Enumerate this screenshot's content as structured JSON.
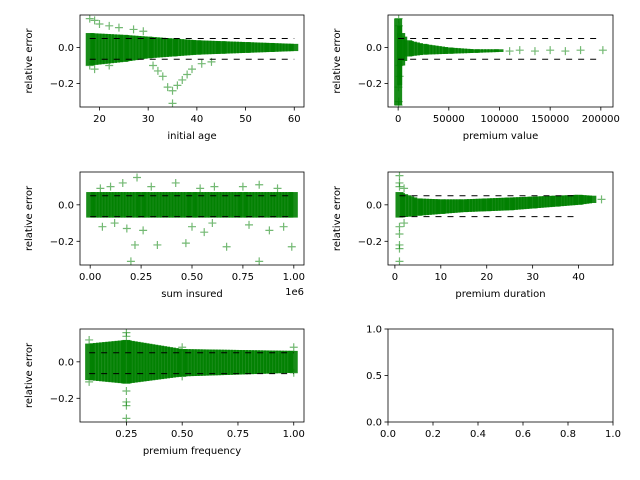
{
  "marker_color": "#008000",
  "bound_color": "#000000",
  "chart_data": [
    {
      "type": "scatter",
      "xlabel": "initial age",
      "ylabel": "relative error",
      "xlim": [
        16,
        62
      ],
      "ylim": [
        -0.33,
        0.18
      ],
      "xticks": [
        20,
        30,
        40,
        50,
        60
      ],
      "xtick_labels": [
        "20",
        "30",
        "40",
        "50",
        "60"
      ],
      "yticks": [
        0.0,
        -0.2
      ],
      "ytick_labels": [
        "0.0",
        "−0.2"
      ],
      "upper_bound": 0.05,
      "lower_bound": -0.065,
      "bound_x": [
        18,
        60
      ],
      "bands": [
        {
          "x": 18,
          "y_min": -0.1,
          "y_max": 0.08
        },
        {
          "x": 25,
          "y_min": -0.08,
          "y_max": 0.07
        },
        {
          "x": 30,
          "y_min": -0.06,
          "y_max": 0.06
        },
        {
          "x": 35,
          "y_min": -0.05,
          "y_max": 0.05
        },
        {
          "x": 40,
          "y_min": -0.04,
          "y_max": 0.04
        },
        {
          "x": 45,
          "y_min": -0.035,
          "y_max": 0.035
        },
        {
          "x": 50,
          "y_min": -0.03,
          "y_max": 0.03
        },
        {
          "x": 55,
          "y_min": -0.025,
          "y_max": 0.025
        },
        {
          "x": 60,
          "y_min": -0.02,
          "y_max": 0.02
        }
      ],
      "outliers": [
        {
          "x": 18,
          "y": 0.16
        },
        {
          "x": 19,
          "y": 0.15
        },
        {
          "x": 20,
          "y": 0.13
        },
        {
          "x": 22,
          "y": 0.12
        },
        {
          "x": 24,
          "y": 0.11
        },
        {
          "x": 27,
          "y": 0.1
        },
        {
          "x": 29,
          "y": 0.09
        },
        {
          "x": 18,
          "y": -0.1
        },
        {
          "x": 19,
          "y": -0.12
        },
        {
          "x": 22,
          "y": -0.1
        },
        {
          "x": 31,
          "y": -0.1
        },
        {
          "x": 32,
          "y": -0.13
        },
        {
          "x": 33,
          "y": -0.16
        },
        {
          "x": 34,
          "y": -0.22
        },
        {
          "x": 35,
          "y": -0.24
        },
        {
          "x": 35,
          "y": -0.31
        },
        {
          "x": 36,
          "y": -0.21
        },
        {
          "x": 37,
          "y": -0.18
        },
        {
          "x": 38,
          "y": -0.15
        },
        {
          "x": 39,
          "y": -0.12
        },
        {
          "x": 41,
          "y": -0.09
        },
        {
          "x": 43,
          "y": -0.08
        }
      ]
    },
    {
      "type": "scatter",
      "xlabel": "premium value",
      "ylabel": "relative error",
      "xlim": [
        -10000,
        212000
      ],
      "ylim": [
        -0.33,
        0.18
      ],
      "xticks": [
        0,
        50000,
        100000,
        150000,
        200000
      ],
      "xtick_labels": [
        "0",
        "50000",
        "100000",
        "150000",
        "200000"
      ],
      "yticks": [
        0.0,
        -0.2
      ],
      "ytick_labels": [
        "0.0",
        "−0.2"
      ],
      "upper_bound": 0.05,
      "lower_bound": -0.065,
      "bound_x": [
        0,
        200000
      ],
      "bands": [
        {
          "x": 0,
          "y_min": -0.32,
          "y_max": 0.16
        },
        {
          "x": 3000,
          "y_min": -0.1,
          "y_max": 0.08
        },
        {
          "x": 10000,
          "y_min": -0.05,
          "y_max": 0.04
        },
        {
          "x": 25000,
          "y_min": -0.04,
          "y_max": 0.02
        },
        {
          "x": 50000,
          "y_min": -0.035,
          "y_max": 0.0
        },
        {
          "x": 75000,
          "y_min": -0.03,
          "y_max": -0.01
        },
        {
          "x": 100000,
          "y_min": -0.025,
          "y_max": -0.01
        }
      ],
      "outliers": [
        {
          "x": 500,
          "y": 0.16
        },
        {
          "x": 800,
          "y": 0.12
        },
        {
          "x": 300,
          "y": -0.22
        },
        {
          "x": 600,
          "y": -0.3
        },
        {
          "x": 400,
          "y": -0.32
        },
        {
          "x": 1500,
          "y": -0.16
        },
        {
          "x": 1200,
          "y": -0.1
        },
        {
          "x": 110000,
          "y": -0.02
        },
        {
          "x": 120000,
          "y": -0.015
        },
        {
          "x": 135000,
          "y": -0.02
        },
        {
          "x": 150000,
          "y": -0.015
        },
        {
          "x": 165000,
          "y": -0.02
        },
        {
          "x": 180000,
          "y": -0.015
        },
        {
          "x": 202000,
          "y": -0.015
        }
      ]
    },
    {
      "type": "scatter",
      "xlabel": "sum insured",
      "ylabel": "relative error",
      "xlim": [
        -50000,
        1050000
      ],
      "ylim": [
        -0.33,
        0.18
      ],
      "xticks": [
        0,
        250000,
        500000,
        750000,
        1000000
      ],
      "xtick_labels": [
        "0.00",
        "0.25",
        "0.50",
        "0.75",
        "1.00"
      ],
      "offset_text": "1e6",
      "yticks": [
        0.0,
        -0.2
      ],
      "ytick_labels": [
        "0.0",
        "−0.2"
      ],
      "upper_bound": 0.05,
      "lower_bound": -0.065,
      "bound_x": [
        0,
        1000000
      ],
      "bands": [
        {
          "x": 0,
          "y_min": -0.07,
          "y_max": 0.07
        },
        {
          "x": 250000,
          "y_min": -0.07,
          "y_max": 0.07
        },
        {
          "x": 500000,
          "y_min": -0.07,
          "y_max": 0.07
        },
        {
          "x": 750000,
          "y_min": -0.07,
          "y_max": 0.07
        },
        {
          "x": 1000000,
          "y_min": -0.07,
          "y_max": 0.07
        }
      ],
      "outliers": [
        {
          "x": 50000,
          "y": 0.09
        },
        {
          "x": 100000,
          "y": 0.1
        },
        {
          "x": 160000,
          "y": 0.12
        },
        {
          "x": 230000,
          "y": 0.15
        },
        {
          "x": 300000,
          "y": 0.1
        },
        {
          "x": 420000,
          "y": 0.12
        },
        {
          "x": 540000,
          "y": 0.09
        },
        {
          "x": 610000,
          "y": 0.1
        },
        {
          "x": 750000,
          "y": 0.1
        },
        {
          "x": 830000,
          "y": 0.11
        },
        {
          "x": 920000,
          "y": 0.09
        },
        {
          "x": 60000,
          "y": -0.12
        },
        {
          "x": 120000,
          "y": -0.1
        },
        {
          "x": 180000,
          "y": -0.13
        },
        {
          "x": 200000,
          "y": -0.31
        },
        {
          "x": 220000,
          "y": -0.22
        },
        {
          "x": 260000,
          "y": -0.14
        },
        {
          "x": 330000,
          "y": -0.22
        },
        {
          "x": 470000,
          "y": -0.21
        },
        {
          "x": 500000,
          "y": -0.12
        },
        {
          "x": 560000,
          "y": -0.15
        },
        {
          "x": 600000,
          "y": -0.1
        },
        {
          "x": 670000,
          "y": -0.23
        },
        {
          "x": 780000,
          "y": -0.11
        },
        {
          "x": 830000,
          "y": -0.31
        },
        {
          "x": 880000,
          "y": -0.14
        },
        {
          "x": 950000,
          "y": -0.12
        },
        {
          "x": 990000,
          "y": -0.23
        }
      ]
    },
    {
      "type": "scatter",
      "xlabel": "premium duration",
      "ylabel": "relative error",
      "xlim": [
        -1.5,
        47.5
      ],
      "ylim": [
        -0.33,
        0.18
      ],
      "xticks": [
        0,
        10,
        20,
        30,
        40
      ],
      "xtick_labels": [
        "0",
        "10",
        "20",
        "30",
        "40"
      ],
      "yticks": [
        0.0,
        -0.2
      ],
      "ytick_labels": [
        "0.0",
        "−0.2"
      ],
      "upper_bound": 0.05,
      "lower_bound": -0.065,
      "bound_x": [
        1,
        40
      ],
      "bands": [
        {
          "x": 1,
          "y_min": -0.07,
          "y_max": 0.07
        },
        {
          "x": 5,
          "y_min": -0.06,
          "y_max": 0.035
        },
        {
          "x": 10,
          "y_min": -0.05,
          "y_max": 0.03
        },
        {
          "x": 15,
          "y_min": -0.04,
          "y_max": 0.03
        },
        {
          "x": 20,
          "y_min": -0.035,
          "y_max": 0.035
        },
        {
          "x": 25,
          "y_min": -0.03,
          "y_max": 0.04
        },
        {
          "x": 30,
          "y_min": -0.02,
          "y_max": 0.045
        },
        {
          "x": 35,
          "y_min": -0.01,
          "y_max": 0.05
        },
        {
          "x": 40,
          "y_min": 0.0,
          "y_max": 0.055
        },
        {
          "x": 43,
          "y_min": 0.01,
          "y_max": 0.05
        }
      ],
      "outliers": [
        {
          "x": 1,
          "y": 0.16
        },
        {
          "x": 1,
          "y": 0.12
        },
        {
          "x": 1,
          "y": 0.1
        },
        {
          "x": 1,
          "y": -0.12
        },
        {
          "x": 1,
          "y": -0.16
        },
        {
          "x": 1,
          "y": -0.22
        },
        {
          "x": 1,
          "y": -0.24
        },
        {
          "x": 1,
          "y": -0.31
        },
        {
          "x": 2,
          "y": -0.1
        },
        {
          "x": 2,
          "y": 0.09
        },
        {
          "x": 45,
          "y": 0.03
        }
      ]
    },
    {
      "type": "scatter",
      "xlabel": "premium frequency",
      "ylabel": "relative error",
      "xlim": [
        0.042,
        1.046
      ],
      "ylim": [
        -0.33,
        0.18
      ],
      "xticks": [
        0.25,
        0.5,
        0.75,
        1.0
      ],
      "xtick_labels": [
        "0.25",
        "0.50",
        "0.75",
        "1.00"
      ],
      "yticks": [
        0.0,
        -0.2
      ],
      "ytick_labels": [
        "0.0",
        "−0.2"
      ],
      "upper_bound": 0.05,
      "lower_bound": -0.065,
      "bound_x": [
        0.083,
        1.0
      ],
      "bands": [
        {
          "x": 0.083,
          "y_min": -0.1,
          "y_max": 0.1
        },
        {
          "x": 0.25,
          "y_min": -0.12,
          "y_max": 0.12
        },
        {
          "x": 0.5,
          "y_min": -0.08,
          "y_max": 0.07
        },
        {
          "x": 1.0,
          "y_min": -0.06,
          "y_max": 0.06
        }
      ],
      "outliers": [
        {
          "x": 0.083,
          "y": 0.12
        },
        {
          "x": 0.083,
          "y": -0.11
        },
        {
          "x": 0.25,
          "y": 0.16
        },
        {
          "x": 0.25,
          "y": 0.14
        },
        {
          "x": 0.25,
          "y": -0.16
        },
        {
          "x": 0.25,
          "y": -0.22
        },
        {
          "x": 0.25,
          "y": -0.24
        },
        {
          "x": 0.25,
          "y": -0.31
        },
        {
          "x": 0.5,
          "y": 0.08
        },
        {
          "x": 0.5,
          "y": -0.08
        },
        {
          "x": 1.0,
          "y": 0.08
        },
        {
          "x": 1.0,
          "y": -0.06
        }
      ]
    },
    {
      "type": "scatter",
      "xlabel": "",
      "ylabel": "",
      "empty": true,
      "xlim": [
        0,
        1
      ],
      "ylim": [
        0,
        1
      ],
      "xticks": [
        0.0,
        0.2,
        0.4,
        0.6,
        0.8,
        1.0
      ],
      "xtick_labels": [
        "0.0",
        "0.2",
        "0.4",
        "0.6",
        "0.8",
        "1.0"
      ],
      "yticks": [
        0.0,
        0.5,
        1.0
      ],
      "ytick_labels": [
        "0.0",
        "0.5",
        "1.0"
      ]
    }
  ]
}
